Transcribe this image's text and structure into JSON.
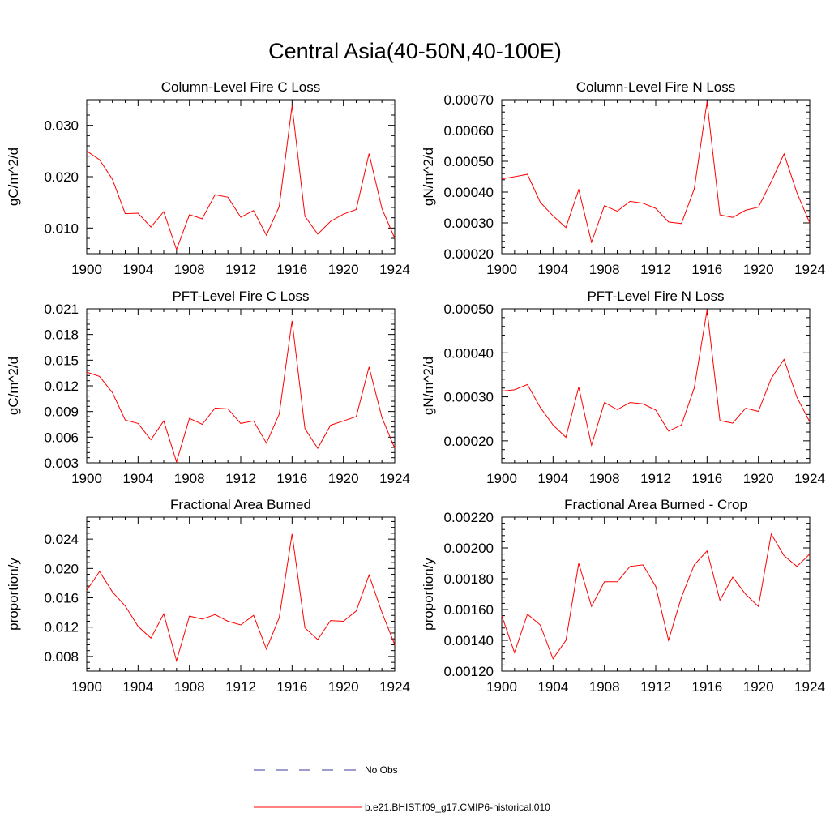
{
  "figure_title": "Central Asia(40-50N,40-100E)",
  "colors": {
    "model_line": "#ff0000",
    "obs_line": "#3a3aa0",
    "axis": "#000000"
  },
  "legend": {
    "obs_label": "No Obs",
    "model_label": "b.e21.BHIST.f09_g17.CMIP6-historical.010"
  },
  "chart_data": [
    {
      "type": "line",
      "title": "Column-Level Fire C Loss",
      "ylabel": "gC/m^2/d",
      "xlim": [
        1900,
        1924
      ],
      "ylim": [
        0.005,
        0.035
      ],
      "xticks": [
        "1900",
        "1904",
        "1908",
        "1912",
        "1916",
        "1920",
        "1924"
      ],
      "yticks": [
        "0.010",
        "0.020",
        "0.030"
      ],
      "x": [
        1900,
        1901,
        1902,
        1903,
        1904,
        1905,
        1906,
        1907,
        1908,
        1909,
        1910,
        1911,
        1912,
        1913,
        1914,
        1915,
        1916,
        1917,
        1918,
        1919,
        1920,
        1921,
        1922,
        1923,
        1924
      ],
      "series": [
        {
          "name": "b.e21.BHIST.f09_g17.CMIP6-historical.010",
          "values": [
            0.025,
            0.0233,
            0.0195,
            0.0128,
            0.0129,
            0.0102,
            0.0132,
            0.0058,
            0.0126,
            0.0118,
            0.0165,
            0.016,
            0.0121,
            0.0134,
            0.0086,
            0.0142,
            0.0338,
            0.0123,
            0.0088,
            0.0113,
            0.0127,
            0.0136,
            0.0245,
            0.0138,
            0.008
          ]
        }
      ]
    },
    {
      "type": "line",
      "title": "Column-Level Fire N Loss",
      "ylabel": "gN/m^2/d",
      "xlim": [
        1900,
        1924
      ],
      "ylim": [
        0.0002,
        0.0007
      ],
      "xticks": [
        "1900",
        "1904",
        "1908",
        "1912",
        "1916",
        "1920",
        "1924"
      ],
      "yticks": [
        "0.00020",
        "0.00030",
        "0.00040",
        "0.00050",
        "0.00060",
        "0.00070"
      ],
      "x": [
        1900,
        1901,
        1902,
        1903,
        1904,
        1905,
        1906,
        1907,
        1908,
        1909,
        1910,
        1911,
        1912,
        1913,
        1914,
        1915,
        1916,
        1917,
        1918,
        1919,
        1920,
        1921,
        1922,
        1923,
        1924
      ],
      "series": [
        {
          "name": "b.e21.BHIST.f09_g17.CMIP6-historical.010",
          "values": [
            0.000443,
            0.00045,
            0.000458,
            0.000367,
            0.000323,
            0.000285,
            0.000408,
            0.000237,
            0.000356,
            0.000338,
            0.00037,
            0.000364,
            0.000347,
            0.000303,
            0.000298,
            0.00041,
            0.000693,
            0.000326,
            0.000318,
            0.000341,
            0.000351,
            0.000434,
            0.000524,
            0.000398,
            0.0003
          ]
        }
      ]
    },
    {
      "type": "line",
      "title": "PFT-Level Fire C Loss",
      "ylabel": "gC/m^2/d",
      "xlim": [
        1900,
        1924
      ],
      "ylim": [
        0.003,
        0.021
      ],
      "xticks": [
        "1900",
        "1904",
        "1908",
        "1912",
        "1916",
        "1920",
        "1924"
      ],
      "yticks": [
        "0.003",
        "0.006",
        "0.009",
        "0.012",
        "0.015",
        "0.018",
        "0.021"
      ],
      "x": [
        1900,
        1901,
        1902,
        1903,
        1904,
        1905,
        1906,
        1907,
        1908,
        1909,
        1910,
        1911,
        1912,
        1913,
        1914,
        1915,
        1916,
        1917,
        1918,
        1919,
        1920,
        1921,
        1922,
        1923,
        1924
      ],
      "series": [
        {
          "name": "b.e21.BHIST.f09_g17.CMIP6-historical.010",
          "values": [
            0.0136,
            0.0131,
            0.0112,
            0.008,
            0.0076,
            0.0057,
            0.0079,
            0.0031,
            0.0082,
            0.0075,
            0.0094,
            0.0093,
            0.0076,
            0.0079,
            0.0053,
            0.0087,
            0.0196,
            0.007,
            0.0047,
            0.0074,
            0.0079,
            0.0084,
            0.0142,
            0.0083,
            0.0047
          ]
        }
      ]
    },
    {
      "type": "line",
      "title": "PFT-Level Fire N Loss",
      "ylabel": "gN/m^2/d",
      "xlim": [
        1900,
        1924
      ],
      "ylim": [
        0.00015,
        0.0005
      ],
      "xticks": [
        "1900",
        "1904",
        "1908",
        "1912",
        "1916",
        "1920",
        "1924"
      ],
      "yticks": [
        "0.00020",
        "0.00030",
        "0.00040",
        "0.00050"
      ],
      "x": [
        1900,
        1901,
        1902,
        1903,
        1904,
        1905,
        1906,
        1907,
        1908,
        1909,
        1910,
        1911,
        1912,
        1913,
        1914,
        1915,
        1916,
        1917,
        1918,
        1919,
        1920,
        1921,
        1922,
        1923,
        1924
      ],
      "series": [
        {
          "name": "b.e21.BHIST.f09_g17.CMIP6-historical.010",
          "values": [
            0.000313,
            0.000316,
            0.000328,
            0.000276,
            0.000236,
            0.000208,
            0.000322,
            0.00019,
            0.000287,
            0.000271,
            0.000287,
            0.000284,
            0.00027,
            0.000222,
            0.000236,
            0.00032,
            0.000497,
            0.000246,
            0.00024,
            0.000274,
            0.000267,
            0.000342,
            0.000385,
            0.000299,
            0.000243
          ]
        }
      ]
    },
    {
      "type": "line",
      "title": "Fractional Area Burned",
      "ylabel": "proportion/y",
      "xlim": [
        1900,
        1924
      ],
      "ylim": [
        0.006,
        0.027
      ],
      "xticks": [
        "1900",
        "1904",
        "1908",
        "1912",
        "1916",
        "1920",
        "1924"
      ],
      "yticks": [
        "0.008",
        "0.012",
        "0.016",
        "0.020",
        "0.024"
      ],
      "x": [
        1900,
        1901,
        1902,
        1903,
        1904,
        1905,
        1906,
        1907,
        1908,
        1909,
        1910,
        1911,
        1912,
        1913,
        1914,
        1915,
        1916,
        1917,
        1918,
        1919,
        1920,
        1921,
        1922,
        1923,
        1924
      ],
      "series": [
        {
          "name": "b.e21.BHIST.f09_g17.CMIP6-historical.010",
          "values": [
            0.017,
            0.0196,
            0.0168,
            0.0149,
            0.0121,
            0.0105,
            0.0138,
            0.0074,
            0.0135,
            0.0131,
            0.0137,
            0.0128,
            0.0123,
            0.0136,
            0.009,
            0.0133,
            0.0247,
            0.0119,
            0.0103,
            0.0129,
            0.0128,
            0.0142,
            0.0191,
            0.014,
            0.0096
          ]
        }
      ]
    },
    {
      "type": "line",
      "title": "Fractional Area Burned - Crop",
      "ylabel": "proportion/y",
      "xlim": [
        1900,
        1924
      ],
      "ylim": [
        0.0012,
        0.0022
      ],
      "xticks": [
        "1900",
        "1904",
        "1908",
        "1912",
        "1916",
        "1920",
        "1924"
      ],
      "yticks": [
        "0.00120",
        "0.00140",
        "0.00160",
        "0.00180",
        "0.00200",
        "0.00220"
      ],
      "x": [
        1900,
        1901,
        1902,
        1903,
        1904,
        1905,
        1906,
        1907,
        1908,
        1909,
        1910,
        1911,
        1912,
        1913,
        1914,
        1915,
        1916,
        1917,
        1918,
        1919,
        1920,
        1921,
        1922,
        1923,
        1924
      ],
      "series": [
        {
          "name": "b.e21.BHIST.f09_g17.CMIP6-historical.010",
          "values": [
            0.00156,
            0.00132,
            0.00157,
            0.0015,
            0.00128,
            0.0014,
            0.0019,
            0.00162,
            0.00178,
            0.00178,
            0.00188,
            0.00189,
            0.00175,
            0.0014,
            0.00168,
            0.00189,
            0.00198,
            0.00166,
            0.00181,
            0.0017,
            0.00162,
            0.00209,
            0.00195,
            0.00188,
            0.00196
          ]
        }
      ]
    }
  ]
}
